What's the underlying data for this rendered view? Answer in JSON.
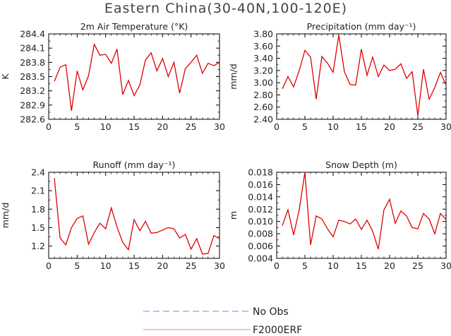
{
  "figure_title": "Eastern China(30-40N,100-120E)",
  "legend": [
    {
      "label": "No Obs",
      "color": "#9a9af0",
      "dashed": true
    },
    {
      "label": "F2000ERF",
      "color": "#f09a9a",
      "dashed": false
    }
  ],
  "chart_data": [
    {
      "type": "line",
      "title": "2m Air Temperature (°K)",
      "ylabel": "K",
      "xlabel": "",
      "xlim": [
        0,
        30
      ],
      "ylim": [
        282.6,
        284.4
      ],
      "xticks": [
        0,
        5,
        10,
        15,
        20,
        25,
        30
      ],
      "xtick_labels": [
        "0",
        "5",
        "10",
        "15",
        "20",
        "25",
        "30"
      ],
      "yticks": [
        282.6,
        282.9,
        283.2,
        283.5,
        283.8,
        284.1,
        284.4
      ],
      "ytick_labels": [
        "282.6",
        "282.9",
        "283.2",
        "283.5",
        "283.8",
        "284.1",
        "284.4"
      ],
      "series": [
        {
          "name": "F2000ERF",
          "color": "#e00000",
          "x": [
            1,
            2,
            3,
            4,
            5,
            6,
            7,
            8,
            9,
            10,
            11,
            12,
            13,
            14,
            15,
            16,
            17,
            18,
            19,
            20,
            21,
            22,
            23,
            24,
            25,
            26,
            27,
            28,
            29,
            30
          ],
          "values": [
            283.4,
            283.7,
            283.75,
            282.78,
            283.62,
            283.22,
            283.52,
            284.18,
            283.95,
            283.97,
            283.78,
            284.08,
            283.12,
            283.42,
            283.1,
            283.32,
            283.85,
            284.0,
            283.62,
            283.88,
            283.5,
            283.8,
            283.15,
            283.67,
            283.8,
            283.95,
            283.57,
            283.78,
            283.73,
            283.8
          ]
        }
      ]
    },
    {
      "type": "line",
      "title": "Precipitation (mm day⁻¹)",
      "ylabel": "mm/d",
      "xlabel": "",
      "xlim": [
        0,
        30
      ],
      "ylim": [
        2.4,
        3.8
      ],
      "xticks": [
        0,
        5,
        10,
        15,
        20,
        25,
        30
      ],
      "xtick_labels": [
        "0",
        "5",
        "10",
        "15",
        "20",
        "25",
        "30"
      ],
      "yticks": [
        2.4,
        2.6,
        2.8,
        3.0,
        3.2,
        3.4,
        3.6,
        3.8
      ],
      "ytick_labels": [
        "2.40",
        "2.60",
        "2.80",
        "3.00",
        "3.20",
        "3.40",
        "3.60",
        "3.80"
      ],
      "series": [
        {
          "name": "F2000ERF",
          "color": "#e00000",
          "x": [
            1,
            2,
            3,
            4,
            5,
            6,
            7,
            8,
            9,
            10,
            11,
            12,
            13,
            14,
            15,
            16,
            17,
            18,
            19,
            20,
            21,
            22,
            23,
            24,
            25,
            26,
            27,
            28,
            29,
            30
          ],
          "values": [
            2.9,
            3.1,
            2.93,
            3.2,
            3.53,
            3.42,
            2.73,
            3.43,
            3.32,
            3.17,
            3.78,
            3.18,
            2.97,
            2.96,
            3.55,
            3.12,
            3.42,
            3.1,
            3.29,
            3.2,
            3.22,
            3.31,
            3.07,
            3.18,
            2.46,
            3.22,
            2.73,
            2.92,
            3.17,
            2.96
          ]
        }
      ]
    },
    {
      "type": "line",
      "title": "Runoff (mm day⁻¹)",
      "ylabel": "mm/d",
      "xlabel": "",
      "xlim": [
        0,
        30
      ],
      "ylim": [
        1.0,
        2.4
      ],
      "xticks": [
        0,
        5,
        10,
        15,
        20,
        25,
        30
      ],
      "xtick_labels": [
        "0",
        "5",
        "10",
        "15",
        "20",
        "25",
        "30"
      ],
      "yticks": [
        1.2,
        1.5,
        1.8,
        2.1,
        2.4
      ],
      "ytick_labels": [
        "1.2",
        "1.5",
        "1.8",
        "2.1",
        "2.4"
      ],
      "series": [
        {
          "name": "F2000ERF",
          "color": "#e00000",
          "x": [
            1,
            2,
            3,
            4,
            5,
            6,
            7,
            8,
            9,
            10,
            11,
            12,
            13,
            14,
            15,
            16,
            17,
            18,
            19,
            20,
            21,
            22,
            23,
            24,
            25,
            26,
            27,
            28,
            29,
            30
          ],
          "values": [
            2.3,
            1.33,
            1.22,
            1.5,
            1.65,
            1.69,
            1.23,
            1.42,
            1.57,
            1.48,
            1.82,
            1.51,
            1.26,
            1.14,
            1.63,
            1.45,
            1.6,
            1.41,
            1.42,
            1.46,
            1.5,
            1.48,
            1.33,
            1.39,
            1.15,
            1.32,
            1.07,
            1.08,
            1.37,
            1.32
          ]
        }
      ]
    },
    {
      "type": "line",
      "title": "Snow Depth (m)",
      "ylabel": "m",
      "xlabel": "",
      "xlim": [
        0,
        30
      ],
      "ylim": [
        0.004,
        0.018
      ],
      "xticks": [
        0,
        5,
        10,
        15,
        20,
        25,
        30
      ],
      "xtick_labels": [
        "0",
        "5",
        "10",
        "15",
        "20",
        "25",
        "30"
      ],
      "yticks": [
        0.004,
        0.006,
        0.008,
        0.01,
        0.012,
        0.014,
        0.016,
        0.018
      ],
      "ytick_labels": [
        "0.004",
        "0.006",
        "0.008",
        "0.010",
        "0.012",
        "0.014",
        "0.016",
        "0.018"
      ],
      "series": [
        {
          "name": "F2000ERF",
          "color": "#e00000",
          "x": [
            1,
            2,
            3,
            4,
            5,
            6,
            7,
            8,
            9,
            10,
            11,
            12,
            13,
            14,
            15,
            16,
            17,
            18,
            19,
            20,
            21,
            22,
            23,
            24,
            25,
            26,
            27,
            28,
            29,
            30
          ],
          "values": [
            0.0093,
            0.0119,
            0.0078,
            0.0119,
            0.018,
            0.0062,
            0.0109,
            0.0104,
            0.0088,
            0.0075,
            0.0102,
            0.01,
            0.0096,
            0.0104,
            0.0087,
            0.0102,
            0.0084,
            0.0055,
            0.0119,
            0.0136,
            0.0097,
            0.0117,
            0.0109,
            0.009,
            0.0088,
            0.0113,
            0.0104,
            0.008,
            0.0113,
            0.0103
          ]
        }
      ]
    }
  ]
}
